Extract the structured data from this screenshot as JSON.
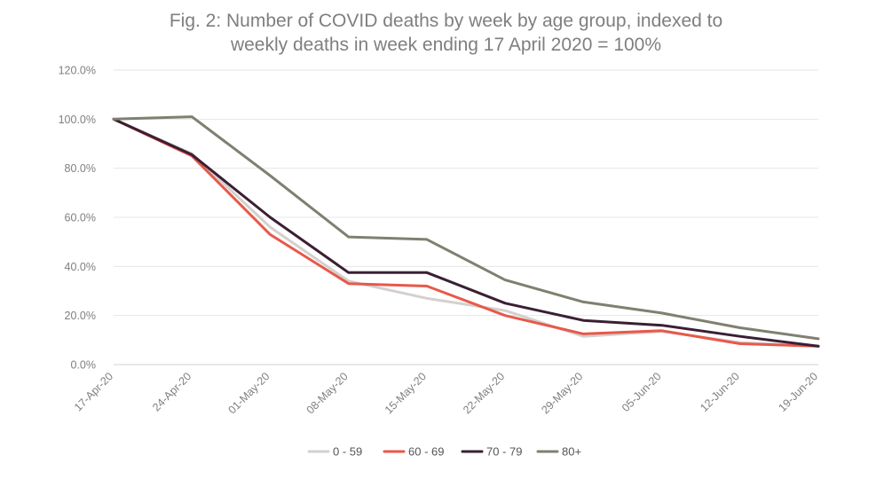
{
  "chart_data": {
    "type": "line",
    "title_line1": "Fig. 2: Number of COVID deaths by week by age group, indexed to",
    "title_line2": "weekly deaths in week ending 17 April 2020 = 100%",
    "x": [
      "17-Apr-20",
      "24-Apr-20",
      "01-May-20",
      "08-May-20",
      "15-May-20",
      "22-May-20",
      "29-May-20",
      "05-Jun-20",
      "12-Jun-20",
      "19-Jun-20"
    ],
    "y_ticks": [
      "0.0%",
      "20.0%",
      "40.0%",
      "60.0%",
      "80.0%",
      "100.0%",
      "120.0%"
    ],
    "ylim": [
      0,
      120
    ],
    "grid": true,
    "legend_position": "bottom",
    "series": [
      {
        "name": "0 - 59",
        "color": "#d4d0ce",
        "values": [
          100,
          86,
          56,
          34,
          27,
          22,
          11.5,
          13.5,
          9,
          7.5
        ]
      },
      {
        "name": "60 - 69",
        "color": "#e8584a",
        "values": [
          100,
          85,
          53,
          33,
          32,
          20,
          12.5,
          13.8,
          8.5,
          7.5
        ]
      },
      {
        "name": "70 - 79",
        "color": "#3a1f33",
        "values": [
          100,
          85.5,
          60,
          37.5,
          37.5,
          25,
          18,
          16,
          11.5,
          7.5
        ]
      },
      {
        "name": "80+",
        "color": "#7f8070",
        "values": [
          100,
          101,
          77,
          52,
          51,
          34.5,
          25.5,
          21,
          15,
          10.5
        ]
      }
    ]
  }
}
